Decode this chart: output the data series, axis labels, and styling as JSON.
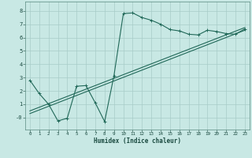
{
  "xlabel": "Humidex (Indice chaleur)",
  "xlim": [
    -0.5,
    23.5
  ],
  "ylim": [
    -0.9,
    8.7
  ],
  "xticks": [
    0,
    1,
    2,
    3,
    4,
    5,
    6,
    7,
    8,
    9,
    10,
    11,
    12,
    13,
    14,
    15,
    16,
    17,
    18,
    19,
    20,
    21,
    22,
    23
  ],
  "yticks": [
    0,
    1,
    2,
    3,
    4,
    5,
    6,
    7,
    8
  ],
  "ytick_labels": [
    "-0",
    "1",
    "2",
    "3",
    "4",
    "5",
    "6",
    "7",
    "8"
  ],
  "bg_color": "#c8e8e4",
  "grid_color": "#a8ccc8",
  "line_color": "#206858",
  "line1_x": [
    0,
    1,
    2,
    3,
    4,
    5,
    6,
    7,
    8,
    9,
    10,
    11,
    12,
    13,
    14,
    15,
    16,
    17,
    18,
    19,
    20,
    21,
    22,
    23
  ],
  "line1_y": [
    2.8,
    1.8,
    1.0,
    -0.25,
    -0.05,
    2.35,
    2.4,
    1.1,
    -0.3,
    3.15,
    7.8,
    7.85,
    7.5,
    7.3,
    7.0,
    6.6,
    6.5,
    6.25,
    6.2,
    6.55,
    6.45,
    6.3,
    6.25,
    6.65
  ],
  "line2_x": [
    0,
    23
  ],
  "line2_y": [
    0.3,
    6.55
  ],
  "line3_x": [
    0,
    23
  ],
  "line3_y": [
    0.5,
    6.75
  ],
  "marker": "+"
}
